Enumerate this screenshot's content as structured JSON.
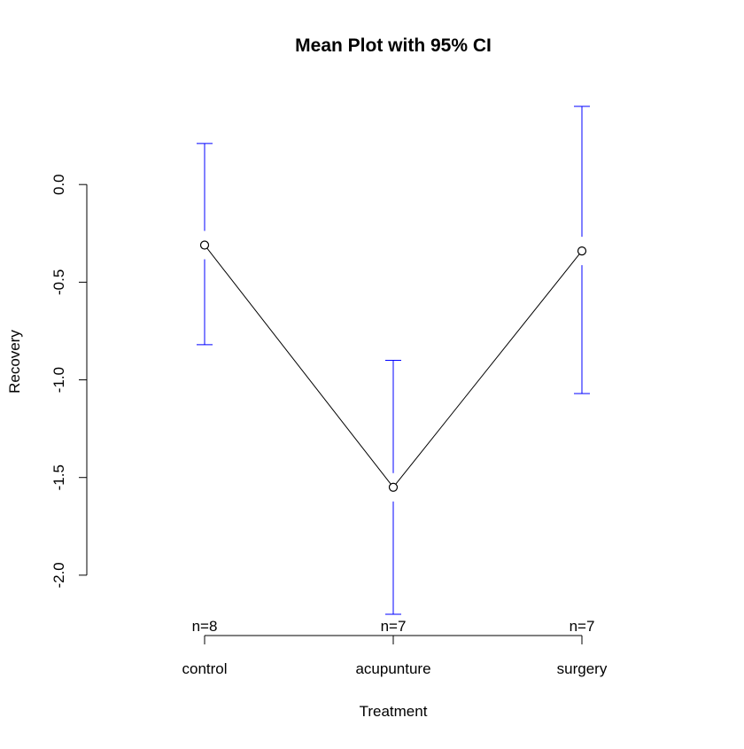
{
  "chart_data": {
    "type": "line",
    "title": "Mean Plot with 95% CI",
    "x_label": "Treatment",
    "y_label": "Recovery",
    "categories": [
      "control",
      "acupunture",
      "surgery"
    ],
    "n_labels": [
      "n=8",
      "n=7",
      "n=7"
    ],
    "series": [
      {
        "color": "#000000",
        "ci_color": "#0000ff",
        "values": [
          -0.31,
          -1.55,
          -0.34
        ],
        "ci_upper": [
          0.21,
          -0.9,
          0.4
        ],
        "ci_lower": [
          -0.82,
          -2.2,
          -1.07
        ]
      }
    ],
    "ylim": [
      -2.3,
      0.5
    ],
    "yticks": [
      {
        "value": 0,
        "label": "0.0"
      },
      -0.5,
      {
        "value": -1,
        "label": "-1.0"
      },
      -1.5,
      {
        "value": -2,
        "label": "-2.0"
      }
    ]
  }
}
